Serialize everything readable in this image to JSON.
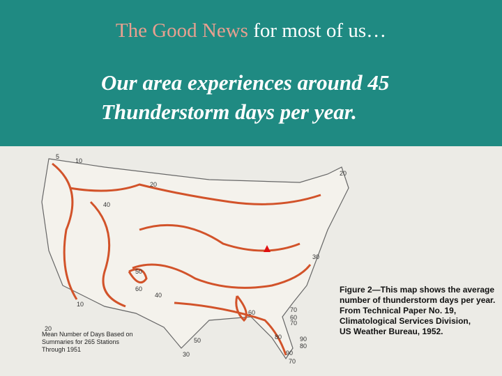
{
  "title": {
    "highlight": "The Good News",
    "rest": "for most of us…"
  },
  "body": {
    "lines": [
      "Our area experiences around 45",
      "Thunderstorm days per year."
    ]
  },
  "map": {
    "legend_lines": [
      "Mean Number of Days Based on",
      "Summaries for 265 Stations",
      "Through 1951"
    ],
    "caption_lines": [
      "Figure 2—This map shows the average",
      "number of thunderstorm days per year.",
      "From Technical Paper No. 19,",
      "Climatological Services Division,",
      "US Weather Bureau, 1952."
    ],
    "contour_labels": [
      5,
      10,
      20,
      40,
      20,
      30,
      50,
      60,
      40,
      60,
      70,
      60,
      70,
      80,
      90,
      80,
      90,
      70,
      50,
      30,
      20,
      10
    ]
  }
}
